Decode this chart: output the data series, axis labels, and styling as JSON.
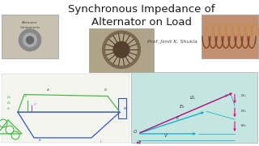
{
  "title_line1": "Synchronous Impedance of",
  "title_line2": "Alternator on Load",
  "subtitle": "Prof. Jimit K. Shukla",
  "bg_color": "#ffffff",
  "title_color": "#1a1a1a",
  "subtitle_color": "#444444",
  "phasor_bg": "#c5e5e0",
  "phasor_arrow_pink": "#e8007a",
  "phasor_line_cyan": "#00b0cc",
  "circuit_green": "#44bb44",
  "circuit_blue": "#3355cc",
  "circuit_orange": "#dd9900",
  "circuit_pink": "#cc44cc",
  "title_fontsize": 9.5,
  "subtitle_fontsize": 4.5,
  "alt_img_color": "#c8c0b0",
  "coil_img_color": "#c09070",
  "stator_color": "#a89060"
}
